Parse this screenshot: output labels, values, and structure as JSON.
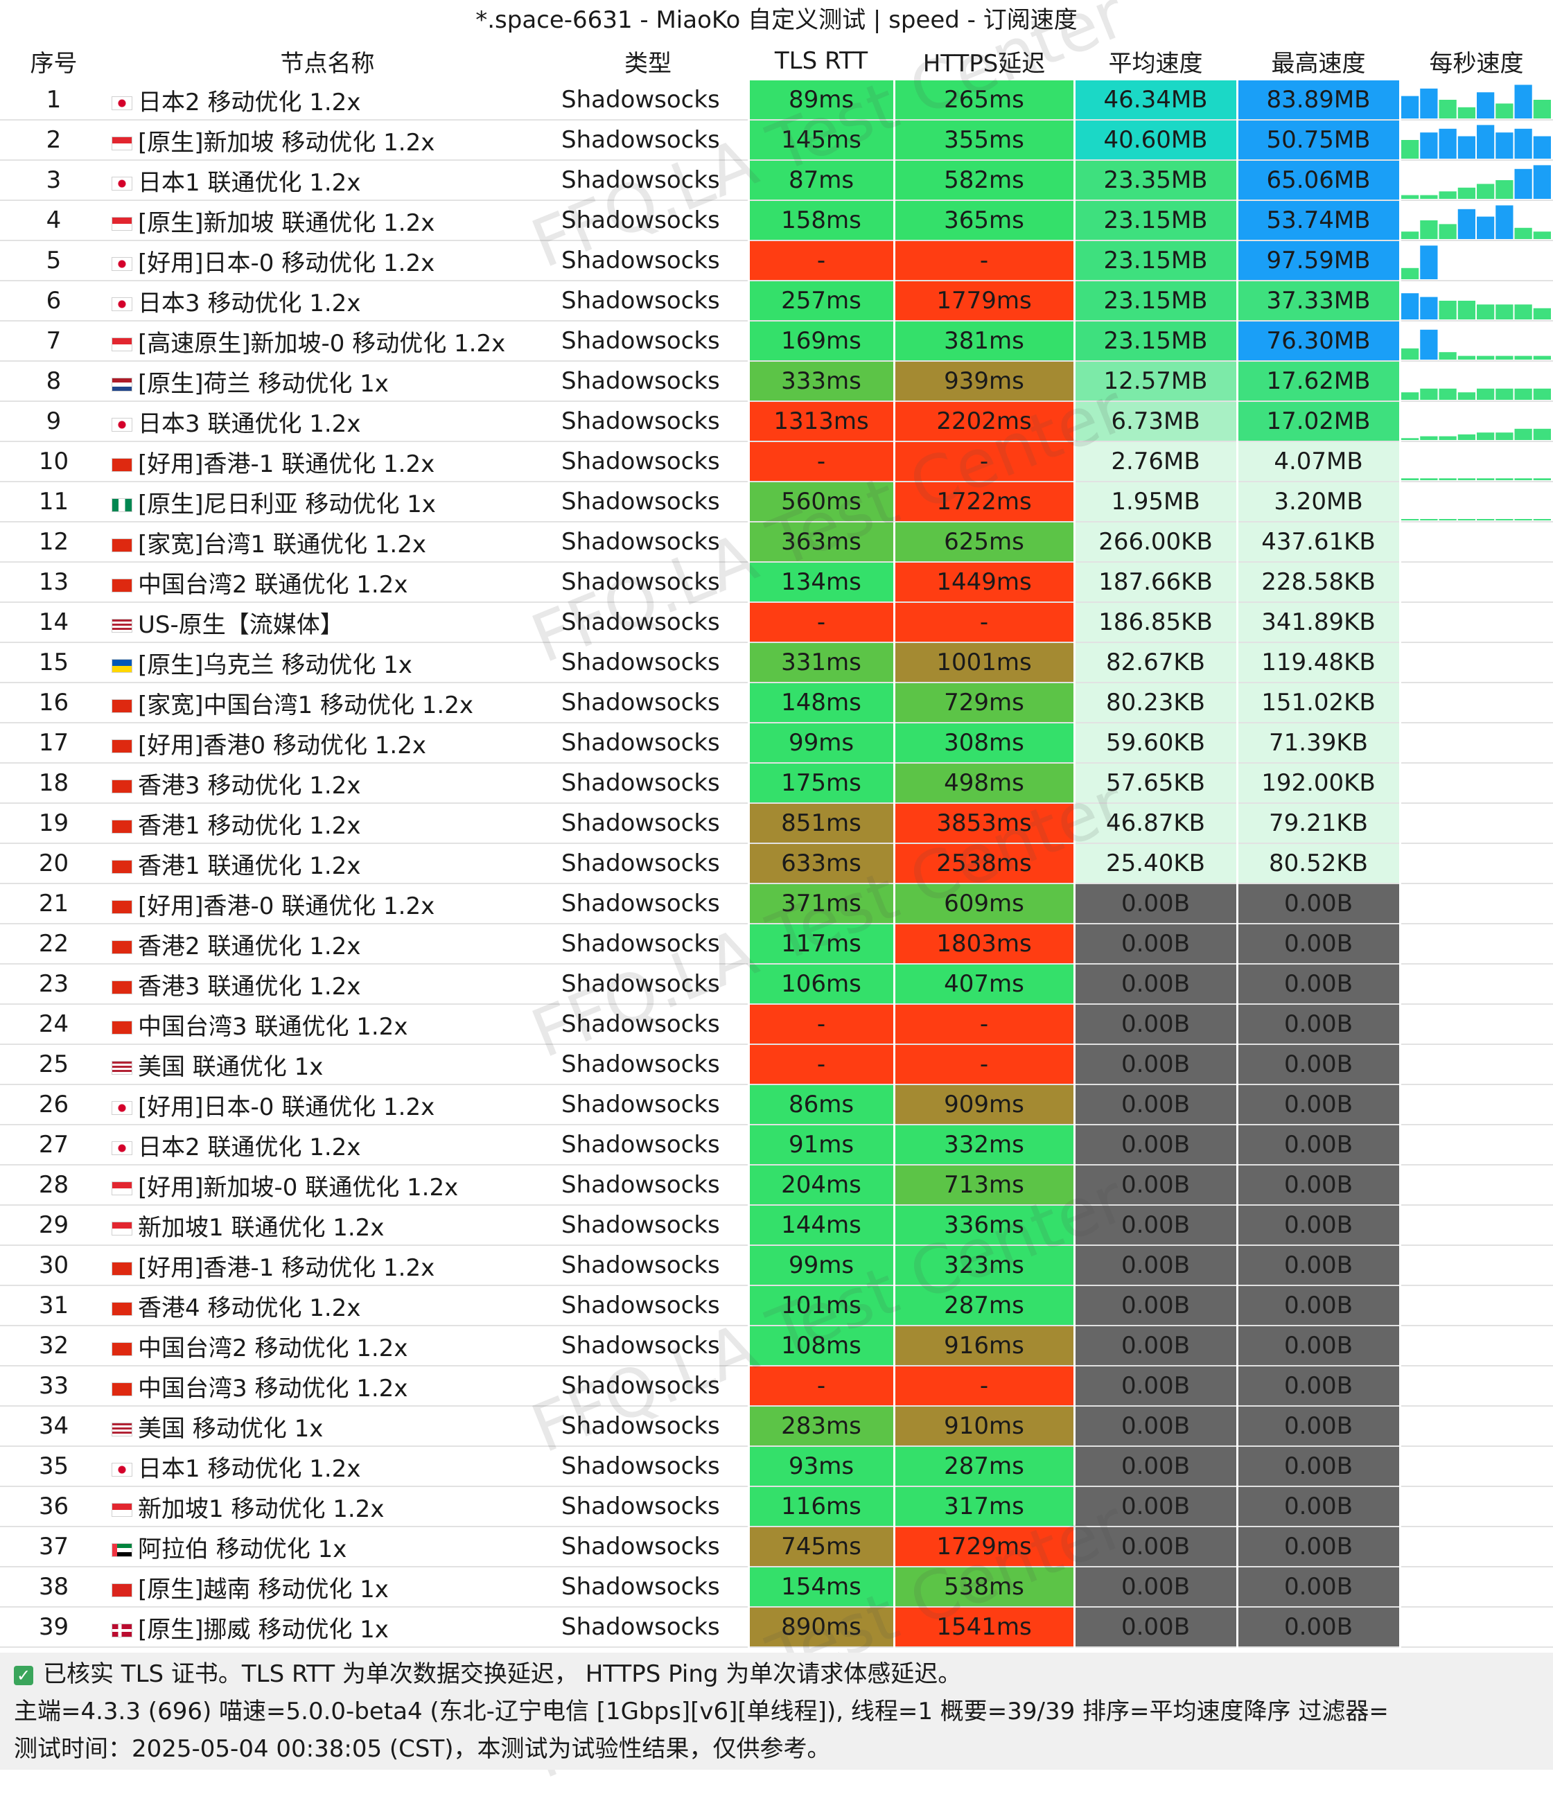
{
  "window": {
    "title": "*.space-6631 - MiaoKo 自定义测试 | speed - 订阅速度"
  },
  "columns": [
    "序号",
    "节点名称",
    "类型",
    "TLS RTT",
    "HTTPS延迟",
    "平均速度",
    "最高速度",
    "每秒速度"
  ],
  "colors": {
    "latency_good": "#34e06a",
    "latency_medium": "#5cc447",
    "latency_slow": "#a48a32",
    "latency_fail": "#ff3d12",
    "speed_zero": "#666666",
    "speed_blue": "#1a9ff7",
    "speed_cyan": "#1bd8c6",
    "speed_green": "#3ee07e",
    "speed_light": "#dcf8e6"
  },
  "rows": [
    {
      "index": "1",
      "flag": "jp",
      "name": "日本2 移动优化 1.2x",
      "type": "Shadowsocks",
      "tls": "89ms",
      "tls_level": "good",
      "https": "265ms",
      "https_level": "good",
      "avg": "46.34MB",
      "avg_level": "cyan",
      "max": "83.89MB",
      "max_level": "blue",
      "spark": [
        0.6,
        0.8,
        0.5,
        0.3,
        0.7,
        0.4,
        0.9,
        0.5
      ]
    },
    {
      "index": "2",
      "flag": "sg",
      "name": "[原生]新加坡 移动优化 1.2x",
      "type": "Shadowsocks",
      "tls": "145ms",
      "tls_level": "good",
      "https": "355ms",
      "https_level": "good",
      "avg": "40.60MB",
      "avg_level": "cyan",
      "max": "50.75MB",
      "max_level": "blue",
      "spark": [
        0.5,
        0.7,
        0.8,
        0.6,
        0.9,
        0.7,
        0.8,
        0.6
      ]
    },
    {
      "index": "3",
      "flag": "jp",
      "name": "日本1 联通优化  1.2x",
      "type": "Shadowsocks",
      "tls": "87ms",
      "tls_level": "good",
      "https": "582ms",
      "https_level": "good",
      "avg": "23.35MB",
      "avg_level": "green",
      "max": "65.06MB",
      "max_level": "blue",
      "spark": [
        0.1,
        0.1,
        0.2,
        0.3,
        0.4,
        0.5,
        0.8,
        0.9
      ]
    },
    {
      "index": "4",
      "flag": "sg",
      "name": "[原生]新加坡 联通优化  1.2x",
      "type": "Shadowsocks",
      "tls": "158ms",
      "tls_level": "good",
      "https": "365ms",
      "https_level": "good",
      "avg": "23.15MB",
      "avg_level": "green",
      "max": "53.74MB",
      "max_level": "blue",
      "spark": [
        0.2,
        0.5,
        0.4,
        0.8,
        0.6,
        0.9,
        0.3,
        0.2
      ]
    },
    {
      "index": "5",
      "flag": "jp",
      "name": "[好用]日本-0 移动优化 1.2x",
      "type": "Shadowsocks",
      "tls": "-",
      "tls_level": "fail",
      "https": "-",
      "https_level": "fail",
      "avg": "23.15MB",
      "avg_level": "green",
      "max": "97.59MB",
      "max_level": "blue",
      "spark": [
        0.3,
        0.9,
        0,
        0,
        0,
        0,
        0,
        0
      ]
    },
    {
      "index": "6",
      "flag": "jp",
      "name": "日本3 移动优化 1.2x",
      "type": "Shadowsocks",
      "tls": "257ms",
      "tls_level": "good",
      "https": "1779ms",
      "https_level": "fail",
      "avg": "23.15MB",
      "avg_level": "green",
      "max": "37.33MB",
      "max_level": "green",
      "spark": [
        0.7,
        0.6,
        0.5,
        0.5,
        0.4,
        0.4,
        0.4,
        0.3
      ]
    },
    {
      "index": "7",
      "flag": "sg",
      "name": "[高速原生]新加坡-0 移动优化 1.2x",
      "type": "Shadowsocks",
      "tls": "169ms",
      "tls_level": "good",
      "https": "381ms",
      "https_level": "good",
      "avg": "23.15MB",
      "avg_level": "green",
      "max": "76.30MB",
      "max_level": "blue",
      "spark": [
        0.3,
        0.8,
        0.2,
        0.1,
        0.1,
        0.1,
        0.1,
        0.1
      ]
    },
    {
      "index": "8",
      "flag": "nl",
      "name": "[原生]荷兰  移动优化  1x",
      "type": "Shadowsocks",
      "tls": "333ms",
      "tls_level": "medium",
      "https": "939ms",
      "https_level": "slow",
      "avg": "12.57MB",
      "avg_level": "mint",
      "max": "17.62MB",
      "max_level": "green",
      "spark": [
        0.2,
        0.3,
        0.3,
        0.2,
        0.3,
        0.3,
        0.3,
        0.3
      ]
    },
    {
      "index": "9",
      "flag": "jp",
      "name": "日本3 联通优化  1.2x",
      "type": "Shadowsocks",
      "tls": "1313ms",
      "tls_level": "fail",
      "https": "2202ms",
      "https_level": "fail",
      "avg": "6.73MB",
      "avg_level": "pale",
      "max": "17.02MB",
      "max_level": "green",
      "spark": [
        0.05,
        0.1,
        0.1,
        0.15,
        0.2,
        0.2,
        0.3,
        0.3
      ]
    },
    {
      "index": "10",
      "flag": "hk",
      "name": "[好用]香港-1 联通优化  1.2x",
      "type": "Shadowsocks",
      "tls": "-",
      "tls_level": "fail",
      "https": "-",
      "https_level": "fail",
      "avg": "2.76MB",
      "avg_level": "light",
      "max": "4.07MB",
      "max_level": "light",
      "spark": [
        0.05,
        0.05,
        0.05,
        0.05,
        0.05,
        0.05,
        0.05,
        0.05
      ]
    },
    {
      "index": "11",
      "flag": "ng",
      "name": "[原生]尼日利亚 移动优化 1x",
      "type": "Shadowsocks",
      "tls": "560ms",
      "tls_level": "medium",
      "https": "1722ms",
      "https_level": "fail",
      "avg": "1.95MB",
      "avg_level": "light",
      "max": "3.20MB",
      "max_level": "light",
      "spark": [
        0.03,
        0.03,
        0.03,
        0.03,
        0.03,
        0.03,
        0.03,
        0.03
      ]
    },
    {
      "index": "12",
      "flag": "cn",
      "name": "[家宽]台湾1 联通优化  1.2x",
      "type": "Shadowsocks",
      "tls": "363ms",
      "tls_level": "medium",
      "https": "625ms",
      "https_level": "medium",
      "avg": "266.00KB",
      "avg_level": "light",
      "max": "437.61KB",
      "max_level": "light",
      "spark": []
    },
    {
      "index": "13",
      "flag": "cn",
      "name": "中国台湾2 联通优化  1.2x",
      "type": "Shadowsocks",
      "tls": "134ms",
      "tls_level": "good",
      "https": "1449ms",
      "https_level": "fail",
      "avg": "187.66KB",
      "avg_level": "light",
      "max": "228.58KB",
      "max_level": "light",
      "spark": []
    },
    {
      "index": "14",
      "flag": "us",
      "name": "US-原生【流媒体】",
      "type": "Shadowsocks",
      "tls": "-",
      "tls_level": "fail",
      "https": "-",
      "https_level": "fail",
      "avg": "186.85KB",
      "avg_level": "light",
      "max": "341.89KB",
      "max_level": "light",
      "spark": []
    },
    {
      "index": "15",
      "flag": "ua",
      "name": "[原生]乌克兰 移动优化 1x",
      "type": "Shadowsocks",
      "tls": "331ms",
      "tls_level": "medium",
      "https": "1001ms",
      "https_level": "slow",
      "avg": "82.67KB",
      "avg_level": "light",
      "max": "119.48KB",
      "max_level": "light",
      "spark": []
    },
    {
      "index": "16",
      "flag": "cn",
      "name": "[家宽]中国台湾1 移动优化 1.2x",
      "type": "Shadowsocks",
      "tls": "148ms",
      "tls_level": "good",
      "https": "729ms",
      "https_level": "medium",
      "avg": "80.23KB",
      "avg_level": "light",
      "max": "151.02KB",
      "max_level": "light",
      "spark": []
    },
    {
      "index": "17",
      "flag": "hk",
      "name": "[好用]香港0 移动优化  1.2x",
      "type": "Shadowsocks",
      "tls": "99ms",
      "tls_level": "good",
      "https": "308ms",
      "https_level": "good",
      "avg": "59.60KB",
      "avg_level": "light",
      "max": "71.39KB",
      "max_level": "light",
      "spark": []
    },
    {
      "index": "18",
      "flag": "hk",
      "name": "香港3 移动优化 1.2x",
      "type": "Shadowsocks",
      "tls": "175ms",
      "tls_level": "good",
      "https": "498ms",
      "https_level": "medium",
      "avg": "57.65KB",
      "avg_level": "light",
      "max": "192.00KB",
      "max_level": "light",
      "spark": []
    },
    {
      "index": "19",
      "flag": "hk",
      "name": "香港1  移动优化 1.2x",
      "type": "Shadowsocks",
      "tls": "851ms",
      "tls_level": "slow",
      "https": "3853ms",
      "https_level": "fail",
      "avg": "46.87KB",
      "avg_level": "light",
      "max": "79.21KB",
      "max_level": "light",
      "spark": []
    },
    {
      "index": "20",
      "flag": "hk",
      "name": "香港1 联通优化 1.2x",
      "type": "Shadowsocks",
      "tls": "633ms",
      "tls_level": "slow",
      "https": "2538ms",
      "https_level": "fail",
      "avg": "25.40KB",
      "avg_level": "light",
      "max": "80.52KB",
      "max_level": "light",
      "spark": []
    },
    {
      "index": "21",
      "flag": "hk",
      "name": "[好用]香港-0 联通优化  1.2x",
      "type": "Shadowsocks",
      "tls": "371ms",
      "tls_level": "medium",
      "https": "609ms",
      "https_level": "medium",
      "avg": "0.00B",
      "avg_level": "zero",
      "max": "0.00B",
      "max_level": "zero",
      "spark": []
    },
    {
      "index": "22",
      "flag": "hk",
      "name": "香港2 联通优化  1.2x",
      "type": "Shadowsocks",
      "tls": "117ms",
      "tls_level": "good",
      "https": "1803ms",
      "https_level": "fail",
      "avg": "0.00B",
      "avg_level": "zero",
      "max": "0.00B",
      "max_level": "zero",
      "spark": []
    },
    {
      "index": "23",
      "flag": "hk",
      "name": "香港3 联通优化  1.2x",
      "type": "Shadowsocks",
      "tls": "106ms",
      "tls_level": "good",
      "https": "407ms",
      "https_level": "good",
      "avg": "0.00B",
      "avg_level": "zero",
      "max": "0.00B",
      "max_level": "zero",
      "spark": []
    },
    {
      "index": "24",
      "flag": "cn",
      "name": "中国台湾3 联通优化  1.2x",
      "type": "Shadowsocks",
      "tls": "-",
      "tls_level": "fail",
      "https": "-",
      "https_level": "fail",
      "avg": "0.00B",
      "avg_level": "zero",
      "max": "0.00B",
      "max_level": "zero",
      "spark": []
    },
    {
      "index": "25",
      "flag": "us",
      "name": "美国  联通优化  1x",
      "type": "Shadowsocks",
      "tls": "-",
      "tls_level": "fail",
      "https": "-",
      "https_level": "fail",
      "avg": "0.00B",
      "avg_level": "zero",
      "max": "0.00B",
      "max_level": "zero",
      "spark": []
    },
    {
      "index": "26",
      "flag": "jp",
      "name": "[好用]日本-0 联通优化  1.2x",
      "type": "Shadowsocks",
      "tls": "86ms",
      "tls_level": "good",
      "https": "909ms",
      "https_level": "slow",
      "avg": "0.00B",
      "avg_level": "zero",
      "max": "0.00B",
      "max_level": "zero",
      "spark": []
    },
    {
      "index": "27",
      "flag": "jp",
      "name": "日本2 联通优化  1.2x",
      "type": "Shadowsocks",
      "tls": "91ms",
      "tls_level": "good",
      "https": "332ms",
      "https_level": "good",
      "avg": "0.00B",
      "avg_level": "zero",
      "max": "0.00B",
      "max_level": "zero",
      "spark": []
    },
    {
      "index": "28",
      "flag": "sg",
      "name": "[好用]新加坡-0 联通优化  1.2x",
      "type": "Shadowsocks",
      "tls": "204ms",
      "tls_level": "good",
      "https": "713ms",
      "https_level": "medium",
      "avg": "0.00B",
      "avg_level": "zero",
      "max": "0.00B",
      "max_level": "zero",
      "spark": []
    },
    {
      "index": "29",
      "flag": "sg",
      "name": "新加坡1 联通优化  1.2x",
      "type": "Shadowsocks",
      "tls": "144ms",
      "tls_level": "good",
      "https": "336ms",
      "https_level": "good",
      "avg": "0.00B",
      "avg_level": "zero",
      "max": "0.00B",
      "max_level": "zero",
      "spark": []
    },
    {
      "index": "30",
      "flag": "hk",
      "name": "[好用]香港-1 移动优化  1.2x",
      "type": "Shadowsocks",
      "tls": "99ms",
      "tls_level": "good",
      "https": "323ms",
      "https_level": "good",
      "avg": "0.00B",
      "avg_level": "zero",
      "max": "0.00B",
      "max_level": "zero",
      "spark": []
    },
    {
      "index": "31",
      "flag": "hk",
      "name": "香港4 移动优化 1.2x",
      "type": "Shadowsocks",
      "tls": "101ms",
      "tls_level": "good",
      "https": "287ms",
      "https_level": "good",
      "avg": "0.00B",
      "avg_level": "zero",
      "max": "0.00B",
      "max_level": "zero",
      "spark": []
    },
    {
      "index": "32",
      "flag": "cn",
      "name": "中国台湾2 移动优化 1.2x",
      "type": "Shadowsocks",
      "tls": "108ms",
      "tls_level": "good",
      "https": "916ms",
      "https_level": "slow",
      "avg": "0.00B",
      "avg_level": "zero",
      "max": "0.00B",
      "max_level": "zero",
      "spark": []
    },
    {
      "index": "33",
      "flag": "cn",
      "name": "中国台湾3 移动优化  1.2x",
      "type": "Shadowsocks",
      "tls": "-",
      "tls_level": "fail",
      "https": "-",
      "https_level": "fail",
      "avg": "0.00B",
      "avg_level": "zero",
      "max": "0.00B",
      "max_level": "zero",
      "spark": []
    },
    {
      "index": "34",
      "flag": "us",
      "name": "美国 移动优化 1x",
      "type": "Shadowsocks",
      "tls": "283ms",
      "tls_level": "medium",
      "https": "910ms",
      "https_level": "slow",
      "avg": "0.00B",
      "avg_level": "zero",
      "max": "0.00B",
      "max_level": "zero",
      "spark": []
    },
    {
      "index": "35",
      "flag": "jp",
      "name": "日本1 移动优化 1.2x",
      "type": "Shadowsocks",
      "tls": "93ms",
      "tls_level": "good",
      "https": "287ms",
      "https_level": "good",
      "avg": "0.00B",
      "avg_level": "zero",
      "max": "0.00B",
      "max_level": "zero",
      "spark": []
    },
    {
      "index": "36",
      "flag": "sg",
      "name": "新加坡1 移动优化 1.2x",
      "type": "Shadowsocks",
      "tls": "116ms",
      "tls_level": "good",
      "https": "317ms",
      "https_level": "good",
      "avg": "0.00B",
      "avg_level": "zero",
      "max": "0.00B",
      "max_level": "zero",
      "spark": []
    },
    {
      "index": "37",
      "flag": "ae",
      "name": "阿拉伯 移动优化  1x",
      "type": "Shadowsocks",
      "tls": "745ms",
      "tls_level": "slow",
      "https": "1729ms",
      "https_level": "fail",
      "avg": "0.00B",
      "avg_level": "zero",
      "max": "0.00B",
      "max_level": "zero",
      "spark": []
    },
    {
      "index": "38",
      "flag": "vn",
      "name": "[原生]越南 移动优化 1x",
      "type": "Shadowsocks",
      "tls": "154ms",
      "tls_level": "good",
      "https": "538ms",
      "https_level": "medium",
      "avg": "0.00B",
      "avg_level": "zero",
      "max": "0.00B",
      "max_level": "zero",
      "spark": []
    },
    {
      "index": "39",
      "flag": "no",
      "name": "[原生]挪威 移动优化 1x",
      "type": "Shadowsocks",
      "tls": "890ms",
      "tls_level": "slow",
      "https": "1541ms",
      "https_level": "fail",
      "avg": "0.00B",
      "avg_level": "zero",
      "max": "0.00B",
      "max_level": "zero",
      "spark": []
    }
  ],
  "footer": {
    "note": "已核实 TLS 证书。TLS RTT 为单次数据交换延迟， HTTPS Ping 为单次请求体感延迟。",
    "info": "主端=4.3.3 (696) 喵速=5.0.0-beta4 (东北-辽宁电信 [1Gbps][v6][单线程]), 线程=1 概要=39/39 排序=平均速度降序 过滤器=",
    "time": "测试时间：2025-05-04 00:38:05 (CST)，本测试为试验性结果，仅供参考。"
  },
  "watermark": "FFQ.LA Test Center"
}
